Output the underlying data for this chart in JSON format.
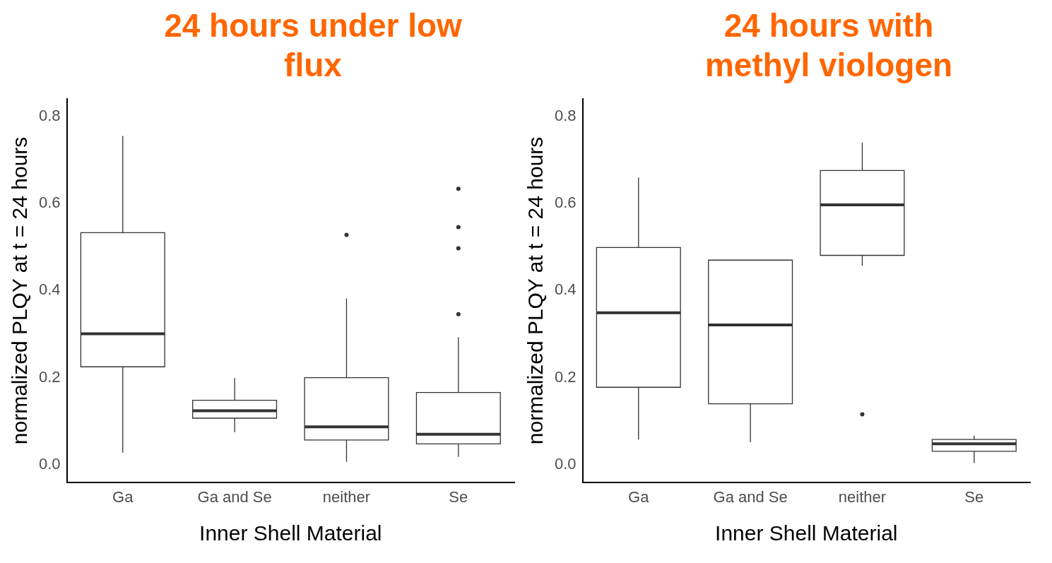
{
  "chart_data": [
    {
      "type": "box",
      "title": "24 hours under low flux",
      "xlabel": "Inner Shell Material",
      "ylabel": "normalized PLQY at t = 24 hours",
      "categories": [
        "Ga",
        "Ga and Se",
        "neither",
        "Se"
      ],
      "ylim": [
        -0.04,
        0.84
      ],
      "yticks": [
        {
          "value": 0,
          "label": "0.0"
        },
        {
          "value": 0.2,
          "label": "0.2"
        },
        {
          "value": 0.4,
          "label": "0.4"
        },
        {
          "value": 0.6,
          "label": "0.6"
        },
        {
          "value": 0.8,
          "label": "0.8"
        }
      ],
      "grid": false,
      "boxes": [
        {
          "low": 0.028,
          "q1": 0.225,
          "median": 0.301,
          "q3": 0.533,
          "high": 0.755
        },
        {
          "low": 0.075,
          "q1": 0.107,
          "median": 0.124,
          "q3": 0.148,
          "high": 0.199
        },
        {
          "low": 0.007,
          "q1": 0.057,
          "median": 0.087,
          "q3": 0.2,
          "high": 0.382,
          "outliers": [
            0.528
          ]
        },
        {
          "low": 0.018,
          "q1": 0.048,
          "median": 0.07,
          "q3": 0.166,
          "high": 0.293,
          "outliers": [
            0.634,
            0.546,
            0.497,
            0.346
          ]
        }
      ]
    },
    {
      "type": "box",
      "title": "24 hours with methyl viologen",
      "xlabel": "Inner Shell Material",
      "ylabel": "normalized PLQY at t = 24 hours",
      "categories": [
        "Ga",
        "Ga and Se",
        "neither",
        "Se"
      ],
      "ylim": [
        -0.04,
        0.84
      ],
      "yticks": [
        {
          "value": 0,
          "label": "0.0"
        },
        {
          "value": 0.2,
          "label": "0.2"
        },
        {
          "value": 0.4,
          "label": "0.4"
        },
        {
          "value": 0.6,
          "label": "0.6"
        },
        {
          "value": 0.8,
          "label": "0.8"
        }
      ],
      "grid": false,
      "boxes": [
        {
          "low": 0.058,
          "q1": 0.178,
          "median": 0.349,
          "q3": 0.499,
          "high": 0.66
        },
        {
          "low": 0.052,
          "q1": 0.14,
          "median": 0.321,
          "q3": 0.47,
          "high": 0.47
        },
        {
          "low": 0.457,
          "q1": 0.481,
          "median": 0.597,
          "q3": 0.676,
          "high": 0.74,
          "outliers": [
            0.116
          ]
        },
        {
          "low": 0.004,
          "q1": 0.031,
          "median": 0.048,
          "q3": 0.058,
          "high": 0.067
        }
      ]
    }
  ]
}
